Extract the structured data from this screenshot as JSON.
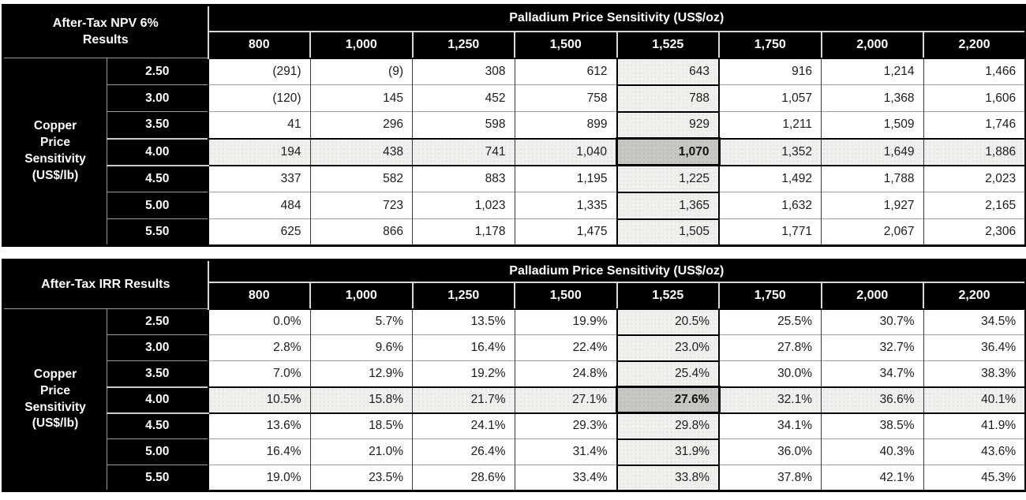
{
  "page": {
    "background": "#ffffff"
  },
  "styles": {
    "header_bg": "#000000",
    "header_text": "#ffffff",
    "cell_text": "#1c1c1c",
    "highlight_bg": "#f1f0ee",
    "intersection_bg": "#c8c7c4",
    "grid_gray": "#9e9e9e",
    "grid_dark": "#3c3c3c",
    "outer_border": "#000000"
  },
  "tables": [
    {
      "name": "after-tax-npv",
      "corner_title_lines": [
        "After-Tax NPV 6%",
        "Results"
      ],
      "column_group_header": "Palladium Price Sensitivity (US$/oz)",
      "row_group_header_lines": [
        "Copper",
        "Price",
        "Sensitivity",
        "(US$/lb)"
      ],
      "columns": [
        "800",
        "1,000",
        "1,250",
        "1,500",
        "1,525",
        "1,750",
        "2,000",
        "2,200"
      ],
      "highlight_column_index": 4,
      "highlight_row_index": 3,
      "highlight_column_header": "1,525",
      "highlight_row_label": "4.00",
      "highlight_intersection_value": "1,070",
      "rows": [
        {
          "label": "2.50",
          "values": [
            "(291)",
            "(9)",
            "308",
            "612",
            "643",
            "916",
            "1,214",
            "1,466"
          ]
        },
        {
          "label": "3.00",
          "values": [
            "(120)",
            "145",
            "452",
            "758",
            "788",
            "1,057",
            "1,368",
            "1,606"
          ]
        },
        {
          "label": "3.50",
          "values": [
            "41",
            "296",
            "598",
            "899",
            "929",
            "1,211",
            "1,509",
            "1,746"
          ]
        },
        {
          "label": "4.00",
          "values": [
            "194",
            "438",
            "741",
            "1,040",
            "1,070",
            "1,352",
            "1,649",
            "1,886"
          ]
        },
        {
          "label": "4.50",
          "values": [
            "337",
            "582",
            "883",
            "1,195",
            "1,225",
            "1,492",
            "1,788",
            "2,023"
          ]
        },
        {
          "label": "5.00",
          "values": [
            "484",
            "723",
            "1,023",
            "1,335",
            "1,365",
            "1,632",
            "1,927",
            "2,165"
          ]
        },
        {
          "label": "5.50",
          "values": [
            "625",
            "866",
            "1,178",
            "1,475",
            "1,505",
            "1,771",
            "2,067",
            "2,306"
          ]
        }
      ]
    },
    {
      "name": "after-tax-irr",
      "corner_title_lines": [
        "After-Tax IRR Results"
      ],
      "column_group_header": "Palladium Price Sensitivity (US$/oz)",
      "row_group_header_lines": [
        "Copper",
        "Price",
        "Sensitivity",
        "(US$/lb)"
      ],
      "columns": [
        "800",
        "1,000",
        "1,250",
        "1,500",
        "1,525",
        "1,750",
        "2,000",
        "2,200"
      ],
      "highlight_column_index": 4,
      "highlight_row_index": 3,
      "highlight_column_header": "1,525",
      "highlight_row_label": "4.00",
      "highlight_intersection_value": "27.6%",
      "rows": [
        {
          "label": "2.50",
          "values": [
            "0.0%",
            "5.7%",
            "13.5%",
            "19.9%",
            "20.5%",
            "25.5%",
            "30.7%",
            "34.5%"
          ]
        },
        {
          "label": "3.00",
          "values": [
            "2.8%",
            "9.6%",
            "16.4%",
            "22.4%",
            "23.0%",
            "27.8%",
            "32.7%",
            "36.4%"
          ]
        },
        {
          "label": "3.50",
          "values": [
            "7.0%",
            "12.9%",
            "19.2%",
            "24.8%",
            "25.4%",
            "30.0%",
            "34.7%",
            "38.3%"
          ]
        },
        {
          "label": "4.00",
          "values": [
            "10.5%",
            "15.8%",
            "21.7%",
            "27.1%",
            "27.6%",
            "32.1%",
            "36.6%",
            "40.1%"
          ]
        },
        {
          "label": "4.50",
          "values": [
            "13.6%",
            "18.5%",
            "24.1%",
            "29.3%",
            "29.8%",
            "34.1%",
            "38.5%",
            "41.9%"
          ]
        },
        {
          "label": "5.00",
          "values": [
            "16.4%",
            "21.0%",
            "26.4%",
            "31.4%",
            "31.9%",
            "36.0%",
            "40.3%",
            "43.6%"
          ]
        },
        {
          "label": "5.50",
          "values": [
            "19.0%",
            "23.5%",
            "28.6%",
            "33.4%",
            "33.8%",
            "37.8%",
            "42.1%",
            "45.3%"
          ]
        }
      ]
    }
  ]
}
